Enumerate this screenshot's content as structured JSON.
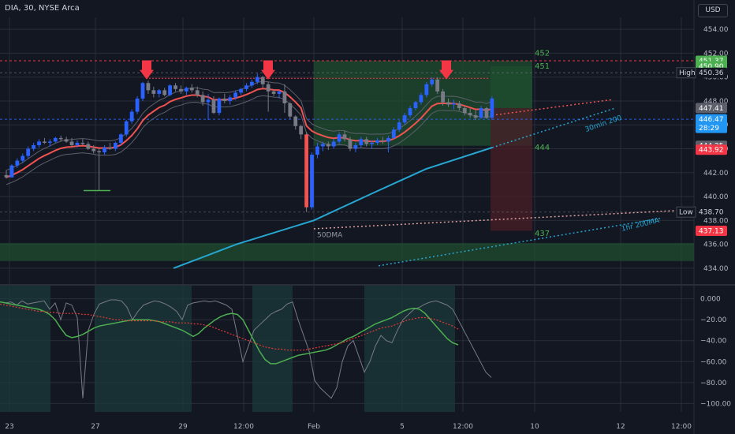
{
  "header": {
    "symbol_label": "DIA, 30, NYSE Arca",
    "currency": "USD"
  },
  "colors": {
    "background": "#131722",
    "grid": "#2a2e39",
    "up": "#2962ff",
    "down": "#787b86",
    "ema": "#f05350",
    "ma_blue": "#26a6d1",
    "green_zone": "#1f4d2f",
    "red_zone": "#4a1f27",
    "label_green": "#4caf50",
    "label_red": "#f23645",
    "label_blue": "#2196f3",
    "label_gray": "#5d606b",
    "axis_text": "#b2b5be"
  },
  "chart_data": [
    {
      "type": "candlestick",
      "ylim": [
        433.2,
        455
      ],
      "y_ticks": [
        "454.00",
        "452.00",
        "450.00",
        "448.00",
        "446.00",
        "444.00",
        "442.00",
        "440.00",
        "438.00",
        "436.00",
        "434.00"
      ],
      "x_ticks": [
        "23",
        "27",
        "29",
        "12:00",
        "Feb",
        "5",
        "12:00",
        "10",
        "12",
        "12:00"
      ],
      "price_labels": [
        {
          "text": "451.37",
          "value": 451.37,
          "style": "green"
        },
        {
          "text": "450.90",
          "value": 450.9,
          "style": "green"
        },
        {
          "text": "450.36",
          "value": 450.36,
          "style": "dark",
          "tag": "High"
        },
        {
          "text": "447.41",
          "value": 447.41,
          "style": "gray"
        },
        {
          "text": "446.47",
          "value": 446.47,
          "style": "blue",
          "sub": "28:29"
        },
        {
          "text": "444.25",
          "value": 444.25,
          "style": "gray"
        },
        {
          "text": "443.92",
          "value": 443.92,
          "style": "red"
        },
        {
          "text": "438.70",
          "value": 438.7,
          "style": "dark",
          "tag": "Low"
        },
        {
          "text": "437.13",
          "value": 437.13,
          "style": "red"
        }
      ],
      "level_labels": [
        {
          "text": "452",
          "value": 452.0
        },
        {
          "text": "451",
          "value": 450.9
        },
        {
          "text": "444",
          "value": 444.1
        },
        {
          "text": "437",
          "value": 436.9
        }
      ],
      "annotations": [
        {
          "text": "30min 200",
          "value": 445.6
        },
        {
          "text": "1hr 200MA",
          "value": 437.3
        },
        {
          "text": "50DMA",
          "value": 436.8
        }
      ],
      "candles": [
        [
          441.8,
          442.2,
          441.5,
          441.6
        ],
        [
          441.6,
          442.7,
          441.6,
          442.6
        ],
        [
          442.6,
          443.2,
          442.4,
          443.0
        ],
        [
          443.0,
          443.6,
          442.8,
          443.4
        ],
        [
          443.4,
          444.2,
          443.2,
          444.0
        ],
        [
          444.0,
          444.5,
          443.8,
          444.3
        ],
        [
          444.3,
          444.8,
          444.1,
          444.6
        ],
        [
          444.6,
          444.9,
          444.4,
          444.5
        ],
        [
          444.5,
          444.8,
          444.2,
          444.6
        ],
        [
          444.6,
          445.0,
          444.5,
          444.9
        ],
        [
          444.9,
          445.1,
          444.6,
          444.8
        ],
        [
          444.8,
          445.0,
          444.5,
          444.6
        ],
        [
          444.6,
          444.9,
          444.2,
          444.3
        ],
        [
          444.3,
          444.7,
          444.1,
          444.5
        ],
        [
          444.5,
          444.8,
          444.3,
          444.4
        ],
        [
          444.4,
          444.6,
          443.9,
          444.0
        ],
        [
          444.0,
          444.3,
          443.6,
          443.8
        ],
        [
          443.8,
          444.0,
          440.5,
          443.7
        ],
        [
          443.7,
          444.3,
          443.5,
          444.1
        ],
        [
          444.1,
          444.5,
          443.9,
          444.0
        ],
        [
          444.0,
          444.6,
          443.8,
          444.5
        ],
        [
          444.5,
          445.3,
          444.3,
          445.2
        ],
        [
          445.2,
          446.4,
          445.0,
          446.3
        ],
        [
          446.3,
          447.3,
          446.1,
          447.1
        ],
        [
          447.1,
          448.4,
          446.9,
          448.2
        ],
        [
          448.2,
          449.6,
          448.0,
          449.5
        ],
        [
          449.5,
          449.7,
          448.6,
          448.9
        ],
        [
          448.9,
          449.2,
          448.3,
          448.6
        ],
        [
          448.6,
          449.0,
          448.3,
          448.9
        ],
        [
          448.9,
          449.1,
          448.4,
          448.5
        ],
        [
          448.5,
          449.4,
          448.4,
          449.3
        ],
        [
          449.3,
          449.5,
          448.8,
          449.0
        ],
        [
          449.0,
          449.3,
          448.6,
          448.8
        ],
        [
          448.8,
          449.2,
          448.5,
          449.1
        ],
        [
          449.1,
          449.4,
          448.7,
          448.9
        ],
        [
          448.9,
          449.2,
          448.3,
          448.5
        ],
        [
          448.5,
          448.8,
          447.6,
          447.9
        ],
        [
          447.9,
          448.6,
          446.4,
          448.1
        ],
        [
          448.1,
          448.4,
          446.9,
          447.0
        ],
        [
          447.0,
          448.3,
          446.8,
          448.2
        ],
        [
          448.2,
          448.6,
          447.8,
          448.0
        ],
        [
          448.0,
          448.5,
          447.7,
          448.3
        ],
        [
          448.3,
          448.9,
          448.1,
          448.7
        ],
        [
          448.7,
          449.1,
          448.5,
          449.0
        ],
        [
          449.0,
          449.5,
          448.8,
          449.3
        ],
        [
          449.3,
          449.8,
          449.1,
          449.6
        ],
        [
          449.6,
          450.3,
          449.4,
          450.0
        ],
        [
          450.0,
          450.1,
          449.1,
          449.4
        ],
        [
          449.4,
          449.6,
          447.1,
          448.8
        ],
        [
          448.8,
          449.0,
          448.4,
          448.6
        ],
        [
          448.6,
          448.9,
          448.2,
          448.8
        ],
        [
          448.8,
          449.4,
          447.0,
          447.8
        ],
        [
          447.8,
          447.9,
          446.5,
          446.7
        ],
        [
          446.7,
          446.8,
          445.6,
          445.9
        ],
        [
          445.9,
          446.0,
          444.8,
          445.2
        ],
        [
          445.2,
          445.4,
          438.7,
          439.1
        ],
        [
          439.1,
          443.7,
          438.9,
          443.5
        ],
        [
          443.5,
          444.5,
          443.2,
          444.2
        ],
        [
          444.2,
          444.6,
          443.8,
          444.4
        ],
        [
          444.4,
          444.6,
          443.9,
          444.2
        ],
        [
          444.2,
          444.8,
          444.0,
          444.6
        ],
        [
          444.6,
          445.4,
          444.4,
          445.2
        ],
        [
          445.2,
          445.5,
          444.6,
          444.8
        ],
        [
          444.8,
          445.0,
          443.8,
          444.0
        ],
        [
          444.0,
          444.5,
          443.7,
          444.3
        ],
        [
          444.3,
          445.0,
          444.1,
          444.8
        ],
        [
          444.8,
          445.0,
          444.2,
          444.4
        ],
        [
          444.4,
          444.7,
          444.0,
          444.5
        ],
        [
          444.5,
          444.9,
          444.3,
          444.7
        ],
        [
          444.7,
          445.0,
          444.4,
          444.6
        ],
        [
          444.6,
          445.1,
          443.7,
          444.9
        ],
        [
          444.9,
          445.8,
          444.8,
          445.6
        ],
        [
          445.6,
          446.4,
          445.4,
          446.2
        ],
        [
          446.2,
          447.0,
          446.0,
          446.8
        ],
        [
          446.8,
          447.6,
          446.6,
          447.4
        ],
        [
          447.4,
          448.0,
          447.2,
          447.9
        ],
        [
          447.9,
          448.7,
          447.7,
          448.5
        ],
        [
          448.5,
          449.6,
          448.3,
          449.4
        ],
        [
          449.4,
          450.0,
          449.2,
          449.8
        ],
        [
          449.8,
          450.0,
          448.6,
          448.8
        ],
        [
          448.8,
          449.0,
          447.6,
          447.9
        ],
        [
          447.9,
          448.2,
          447.5,
          447.7
        ],
        [
          447.7,
          448.1,
          447.3,
          447.8
        ],
        [
          447.8,
          448.0,
          447.2,
          447.4
        ],
        [
          447.4,
          447.6,
          446.8,
          447.0
        ],
        [
          447.0,
          447.4,
          446.6,
          446.8
        ],
        [
          446.8,
          447.2,
          446.4,
          446.6
        ],
        [
          446.6,
          447.6,
          446.5,
          447.4
        ],
        [
          447.4,
          447.5,
          446.5,
          446.6
        ],
        [
          446.6,
          448.4,
          446.4,
          448.2
        ]
      ],
      "zones": [
        {
          "color": "green",
          "y1": 451.37,
          "y2": 444.25
        },
        {
          "color": "green",
          "y1": 450.9,
          "y2": 447.41
        },
        {
          "color": "red",
          "y1": 447.41,
          "y2": 437.13
        },
        {
          "color": "green",
          "y1": 436.1,
          "y2": 434.6
        }
      ]
    },
    {
      "type": "line",
      "ylim": [
        -108,
        5
      ],
      "y_ticks": [
        "0.000",
        "−20.00",
        "−40.00",
        "−60.00",
        "−80.00",
        "−100.00"
      ],
      "series": [
        {
          "values": [
            -3,
            -4,
            -3,
            -6,
            -2,
            -5,
            -4,
            -3,
            -2,
            -10,
            -4,
            -20,
            -4,
            -6,
            -18,
            -95,
            -30,
            -15,
            -5,
            -3,
            -1,
            -1,
            -2,
            -8,
            -20,
            -12,
            -6,
            -4,
            -2,
            -3,
            -5,
            -8,
            -12,
            -20,
            -6,
            -4,
            -3,
            -2,
            -3,
            -2,
            -4,
            -6,
            -10,
            -35,
            -60,
            -45,
            -30,
            -25,
            -20,
            -15,
            -12,
            -10,
            -5,
            -3,
            -20,
            -35,
            -50,
            -78,
            -85,
            -90,
            -95,
            -85,
            -60,
            -45,
            -40,
            -55,
            -70,
            -60,
            -45,
            -35,
            -40,
            -42,
            -30,
            -20,
            -15,
            -10,
            -8,
            -5,
            -3,
            -2,
            -4,
            -6,
            -10,
            -20,
            -30,
            -40,
            -50,
            -60,
            -70,
            -75
          ]
        },
        {
          "values": [
            -3,
            -4,
            -5,
            -6,
            -7,
            -8,
            -9,
            -10,
            -12,
            -15,
            -20,
            -28,
            -35,
            -37,
            -36,
            -34,
            -31,
            -28,
            -26,
            -25,
            -24,
            -23,
            -22,
            -21,
            -20,
            -20,
            -20,
            -20,
            -21,
            -22,
            -24,
            -26,
            -28,
            -30,
            -33,
            -36,
            -33,
            -28,
            -24,
            -20,
            -17,
            -15,
            -14,
            -15,
            -20,
            -30,
            -40,
            -50,
            -58,
            -62,
            -62,
            -60,
            -58,
            -56,
            -54,
            -53,
            -52,
            -51,
            -50,
            -49,
            -47,
            -44,
            -41,
            -38,
            -36,
            -33,
            -30,
            -27,
            -24,
            -22,
            -20,
            -18,
            -15,
            -12,
            -10,
            -9,
            -10,
            -14,
            -20,
            -26,
            -32,
            -38,
            -42,
            -44
          ]
        },
        {
          "values": [
            -5,
            -6,
            -7,
            -8,
            -9,
            -10,
            -11,
            -12,
            -12,
            -13,
            -13,
            -14,
            -14,
            -14,
            -14,
            -15,
            -15,
            -16,
            -17,
            -18,
            -19,
            -20,
            -20,
            -21,
            -21,
            -21,
            -21,
            -21,
            -21,
            -22,
            -22,
            -22,
            -23,
            -23,
            -23,
            -24,
            -24,
            -25,
            -26,
            -28,
            -30,
            -32,
            -34,
            -36,
            -38,
            -40,
            -42,
            -44,
            -46,
            -47,
            -48,
            -48,
            -49,
            -49,
            -49,
            -49,
            -48,
            -47,
            -46,
            -45,
            -44,
            -43,
            -42,
            -40,
            -38,
            -36,
            -34,
            -32,
            -30,
            -28,
            -27,
            -26,
            -24,
            -22,
            -20,
            -19,
            -18,
            -18,
            -19,
            -20,
            -22,
            -24,
            -26,
            -29
          ]
        }
      ],
      "shaded_ranges": [
        [
          0,
          64
        ],
        [
          120,
          243
        ],
        [
          320,
          371
        ],
        [
          462,
          577
        ]
      ]
    }
  ]
}
